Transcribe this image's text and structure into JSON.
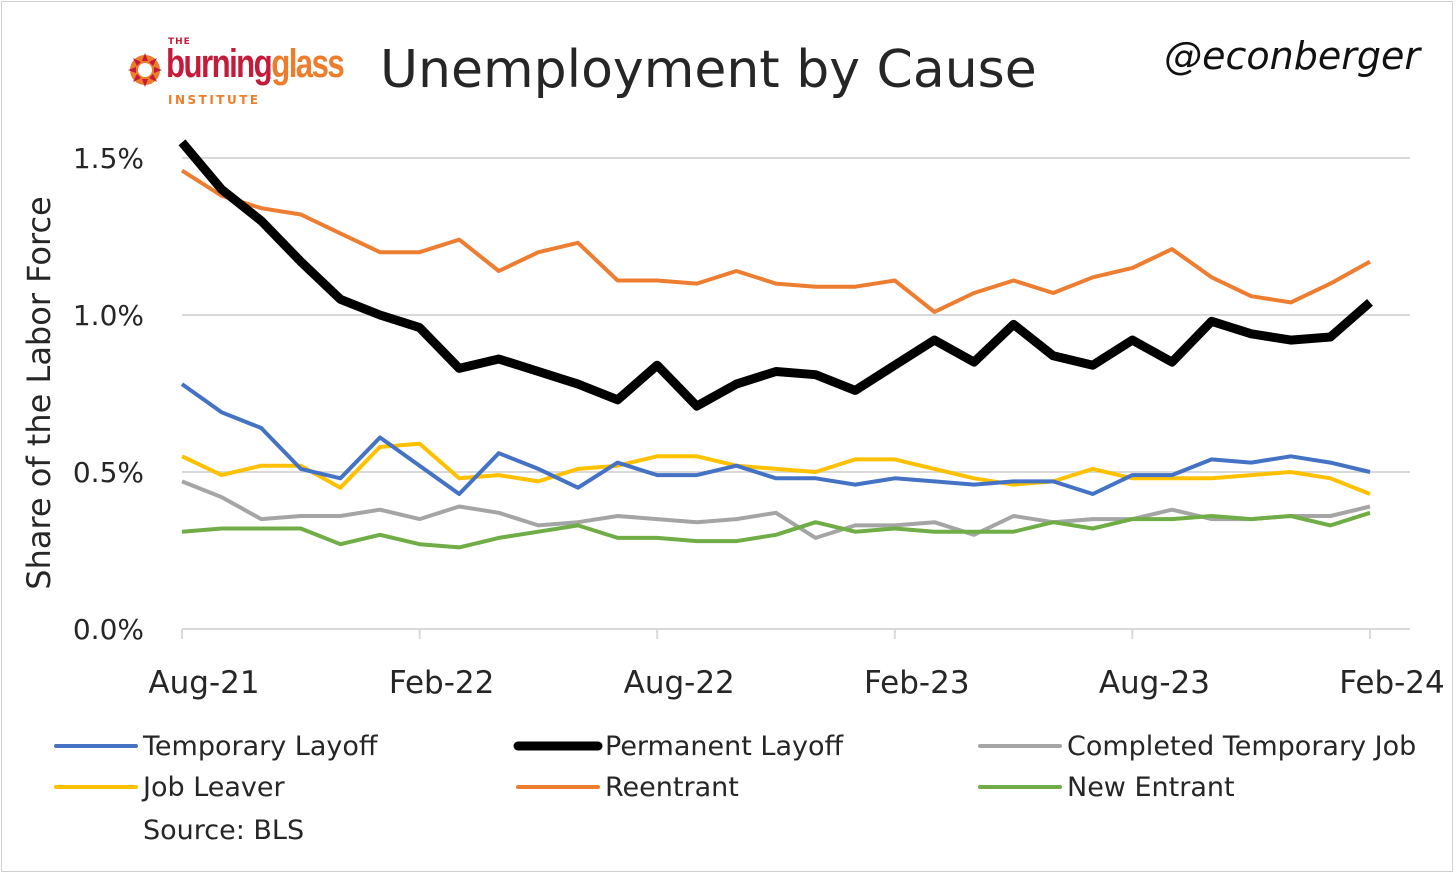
{
  "header": {
    "title": "Unemployment by Cause",
    "handle": "@econberger",
    "logo": {
      "the": "THE",
      "burning": "burning",
      "glass": "glass",
      "institute": "INSTITUTE"
    }
  },
  "source": "Source: BLS",
  "colors": {
    "temporary_layoff": "#4472c4",
    "permanent_layoff": "#000000",
    "completed_temporary_job": "#a5a5a5",
    "job_leaver": "#ffc000",
    "reentrant": "#ed7d31",
    "new_entrant": "#70ad47",
    "logo_red": "#c51b3a",
    "logo_orange": "#ee7d2b"
  },
  "chart_data": {
    "type": "line",
    "title": "Unemployment by Cause",
    "ylabel": "Share of the Labor Force",
    "xlabel": "",
    "ylim": [
      0,
      1.5
    ],
    "y_ticks": [
      "0.0%",
      "0.5%",
      "1.0%",
      "1.5%"
    ],
    "y_tick_values": [
      0,
      0.5,
      1.0,
      1.5
    ],
    "x_ticks": [
      "Aug-21",
      "Feb-22",
      "Aug-22",
      "Feb-23",
      "Aug-23",
      "Feb-24"
    ],
    "x_tick_index": [
      0,
      6,
      12,
      18,
      24,
      30
    ],
    "grid": true,
    "legend_position": "bottom",
    "x": [
      "Aug-21",
      "Sep-21",
      "Oct-21",
      "Nov-21",
      "Dec-21",
      "Jan-22",
      "Feb-22",
      "Mar-22",
      "Apr-22",
      "May-22",
      "Jun-22",
      "Jul-22",
      "Aug-22",
      "Sep-22",
      "Oct-22",
      "Nov-22",
      "Dec-22",
      "Jan-23",
      "Feb-23",
      "Mar-23",
      "Apr-23",
      "May-23",
      "Jun-23",
      "Jul-23",
      "Aug-23",
      "Sep-23",
      "Oct-23",
      "Nov-23",
      "Dec-23",
      "Jan-24",
      "Feb-24"
    ],
    "series": [
      {
        "name": "Temporary Layoff",
        "color": "#4472c4",
        "width": 4,
        "values": [
          0.78,
          0.69,
          0.64,
          0.51,
          0.48,
          0.61,
          0.52,
          0.43,
          0.56,
          0.51,
          0.45,
          0.53,
          0.49,
          0.49,
          0.52,
          0.48,
          0.48,
          0.46,
          0.48,
          0.47,
          0.46,
          0.47,
          0.47,
          0.43,
          0.49,
          0.49,
          0.54,
          0.53,
          0.55,
          0.53,
          0.5
        ]
      },
      {
        "name": "Permanent Layoff",
        "color": "#000000",
        "width": 9,
        "values": [
          1.55,
          1.4,
          1.3,
          1.17,
          1.05,
          1.0,
          0.96,
          0.83,
          0.86,
          0.82,
          0.78,
          0.73,
          0.84,
          0.71,
          0.78,
          0.82,
          0.81,
          0.76,
          0.84,
          0.92,
          0.85,
          0.97,
          0.87,
          0.84,
          0.92,
          0.85,
          0.98,
          0.94,
          0.92,
          0.93,
          1.04
        ]
      },
      {
        "name": "Completed Temporary Job",
        "color": "#a5a5a5",
        "width": 4,
        "values": [
          0.47,
          0.42,
          0.35,
          0.36,
          0.36,
          0.38,
          0.35,
          0.39,
          0.37,
          0.33,
          0.34,
          0.36,
          0.35,
          0.34,
          0.35,
          0.37,
          0.29,
          0.33,
          0.33,
          0.34,
          0.3,
          0.36,
          0.34,
          0.35,
          0.35,
          0.38,
          0.35,
          0.35,
          0.36,
          0.36,
          0.39
        ]
      },
      {
        "name": "Job Leaver",
        "color": "#ffc000",
        "width": 4,
        "values": [
          0.55,
          0.49,
          0.52,
          0.52,
          0.45,
          0.58,
          0.59,
          0.48,
          0.49,
          0.47,
          0.51,
          0.52,
          0.55,
          0.55,
          0.52,
          0.51,
          0.5,
          0.54,
          0.54,
          0.51,
          0.48,
          0.46,
          0.47,
          0.51,
          0.48,
          0.48,
          0.48,
          0.49,
          0.5,
          0.48,
          0.43
        ]
      },
      {
        "name": "Reentrant",
        "color": "#ed7d31",
        "width": 4,
        "values": [
          1.46,
          1.38,
          1.34,
          1.32,
          1.26,
          1.2,
          1.2,
          1.24,
          1.14,
          1.2,
          1.23,
          1.11,
          1.11,
          1.1,
          1.14,
          1.1,
          1.09,
          1.09,
          1.11,
          1.01,
          1.07,
          1.11,
          1.07,
          1.12,
          1.15,
          1.21,
          1.12,
          1.06,
          1.04,
          1.1,
          1.17
        ]
      },
      {
        "name": "New Entrant",
        "color": "#70ad47",
        "width": 4,
        "values": [
          0.31,
          0.32,
          0.32,
          0.32,
          0.27,
          0.3,
          0.27,
          0.26,
          0.29,
          0.31,
          0.33,
          0.29,
          0.29,
          0.28,
          0.28,
          0.3,
          0.34,
          0.31,
          0.32,
          0.31,
          0.31,
          0.31,
          0.34,
          0.32,
          0.35,
          0.35,
          0.36,
          0.35,
          0.36,
          0.33,
          0.37
        ]
      }
    ]
  }
}
